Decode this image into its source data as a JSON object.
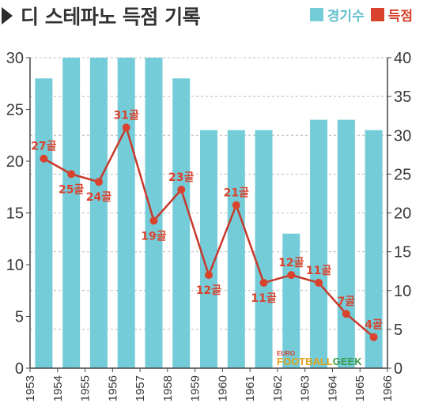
{
  "header": {
    "title": "디 스테파노 득점 기록"
  },
  "legend": {
    "bars_label": "경기수",
    "line_label": "득점"
  },
  "watermark": {
    "top": "EURO",
    "main_a": "FOOTBALL",
    "main_b": "GEEK"
  },
  "colors": {
    "bar": "#74ccd8",
    "line": "#c8392b",
    "point": "#d9432e",
    "text": "#333333"
  },
  "chart_data": {
    "type": "bar",
    "x_ticks": [
      "1953",
      "1954",
      "1955",
      "1956",
      "1957",
      "1958",
      "1959",
      "1960",
      "1961",
      "1962",
      "1963",
      "1964",
      "1965",
      "1966"
    ],
    "categories": [
      "1953-54",
      "1954-55",
      "1955-56",
      "1956-57",
      "1957-58",
      "1958-59",
      "1959-60",
      "1960-61",
      "1961-62",
      "1962-63",
      "1963-64",
      "1964-65",
      "1965-66"
    ],
    "left_axis": {
      "ylim": [
        0,
        30
      ],
      "ticks": [
        0,
        5,
        10,
        15,
        20,
        25,
        30
      ]
    },
    "right_axis": {
      "ylim": [
        0,
        40
      ],
      "ticks": [
        0,
        5,
        10,
        15,
        20,
        25,
        30,
        35,
        40
      ]
    },
    "series": [
      {
        "name": "경기수",
        "type": "bar",
        "axis": "left",
        "values": [
          28,
          30,
          30,
          30,
          30,
          28,
          23,
          23,
          23,
          13,
          24,
          24,
          23
        ]
      },
      {
        "name": "득점",
        "type": "line",
        "axis": "right",
        "values": [
          27,
          25,
          24,
          31,
          19,
          23,
          12,
          21,
          11,
          12,
          11,
          7,
          4
        ],
        "labels": [
          "27골",
          "25골",
          "24골",
          "31골",
          "19골",
          "23골",
          "12골",
          "21골",
          "11골",
          "12골",
          "11골",
          "7골",
          "4골"
        ]
      }
    ],
    "grid": true
  }
}
